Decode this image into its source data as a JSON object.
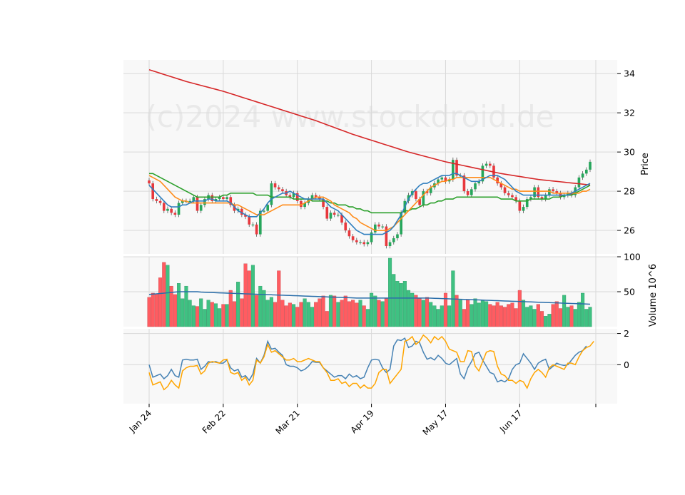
{
  "watermark": "(c)2024 www.stockdroid.de",
  "colors": {
    "up": "#26a65b",
    "down": "#e8383d",
    "up_vol": "#3fc182",
    "down_vol": "#ff5c61",
    "ma_blue": "#2f7fbf",
    "ma_orange": "#ff8c1a",
    "ma_green": "#2ca02c",
    "ma_red": "#d62728",
    "vol_ma": "#2a6eaa",
    "osc_blue": "#4682b4",
    "osc_orange": "#ffa500",
    "panel_bg": "#f8f8f8",
    "grid": "#d9d9d9"
  },
  "chart_data": [
    {
      "type": "candlestick",
      "panel": "price",
      "ylabel": "Price",
      "ylim": [
        24.8,
        34.7
      ],
      "yticks": [
        26,
        28,
        30,
        32,
        34
      ],
      "x_tick_labels": [
        "Jan 24",
        "Feb 22",
        "Mar 21",
        "Apr 19",
        "May 17",
        "Jun 17"
      ],
      "x_tick_index": [
        0,
        20,
        40,
        60,
        80,
        100
      ],
      "close": [
        28.4,
        27.6,
        27.5,
        27.4,
        27.0,
        27.1,
        26.9,
        26.8,
        27.4,
        27.5,
        27.5,
        27.5,
        27.7,
        27.0,
        27.3,
        27.6,
        27.8,
        27.5,
        27.6,
        27.7,
        27.6,
        27.7,
        27.3,
        27.0,
        27.1,
        26.8,
        26.7,
        26.3,
        26.3,
        25.8,
        27.0,
        27.0,
        27.3,
        28.4,
        28.2,
        28.1,
        28.0,
        27.8,
        27.7,
        27.9,
        27.5,
        27.2,
        27.4,
        27.6,
        27.8,
        27.7,
        27.6,
        27.2,
        26.6,
        26.9,
        26.8,
        26.8,
        26.4,
        26.0,
        25.7,
        25.5,
        25.4,
        25.4,
        25.3,
        25.4,
        25.9,
        26.3,
        26.2,
        26.2,
        25.2,
        25.4,
        25.6,
        25.8,
        26.9,
        27.5,
        27.8,
        28.0,
        27.6,
        27.3,
        28.0,
        27.9,
        28.2,
        28.4,
        28.6,
        28.7,
        28.5,
        28.6,
        29.6,
        28.8,
        28.8,
        28.0,
        27.8,
        28.1,
        28.4,
        28.5,
        29.3,
        29.4,
        29.3,
        28.7,
        28.4,
        28.2,
        27.9,
        27.8,
        27.7,
        27.5,
        27.0,
        27.2,
        27.6,
        27.7,
        28.2,
        27.7,
        27.6,
        27.8,
        28.1,
        28.0,
        27.9,
        27.7,
        27.8,
        27.9,
        27.8,
        28.2,
        28.7,
        28.9,
        29.1,
        29.5
      ],
      "ma_blue": [
        28.3,
        28.1,
        27.9,
        27.7,
        27.5,
        27.3,
        27.2,
        27.2,
        27.2,
        27.3,
        27.3,
        27.4,
        27.5,
        27.5,
        27.5,
        27.5,
        27.6,
        27.6,
        27.5,
        27.5,
        27.5,
        27.5,
        27.4,
        27.2,
        27.0,
        26.9,
        26.8,
        26.7,
        26.7,
        26.7,
        26.9,
        27.1,
        27.4,
        27.6,
        27.7,
        27.8,
        27.9,
        27.9,
        28.0,
        27.9,
        27.8,
        27.7,
        27.6,
        27.6,
        27.6,
        27.6,
        27.6,
        27.6,
        27.4,
        27.2,
        27.1,
        27.0,
        26.8,
        26.6,
        26.4,
        26.2,
        26.0,
        25.9,
        25.8,
        25.8,
        25.8,
        25.8,
        25.8,
        25.8,
        25.9,
        26.0,
        26.2,
        26.5,
        26.8,
        27.2,
        27.6,
        27.9,
        28.1,
        28.3,
        28.4,
        28.4,
        28.5,
        28.6,
        28.7,
        28.8,
        28.8,
        28.8,
        28.9,
        28.9,
        28.8,
        28.7,
        28.6,
        28.5,
        28.5,
        28.5,
        28.6,
        28.7,
        28.8,
        28.8,
        28.8,
        28.7,
        28.6,
        28.4,
        28.2,
        28.0,
        27.9,
        27.8,
        27.8,
        27.8,
        27.8,
        27.8,
        27.8,
        27.8,
        27.8,
        27.8,
        27.8,
        27.8,
        27.8,
        27.8,
        27.9,
        28.0,
        28.1,
        28.2,
        28.3,
        28.4
      ],
      "ma_orange": [
        28.8,
        28.7,
        28.6,
        28.5,
        28.3,
        28.1,
        27.9,
        27.7,
        27.6,
        27.5,
        27.5,
        27.4,
        27.4,
        27.4,
        27.4,
        27.4,
        27.4,
        27.4,
        27.4,
        27.4,
        27.4,
        27.4,
        27.4,
        27.3,
        27.3,
        27.2,
        27.1,
        27.0,
        26.9,
        26.8,
        26.8,
        26.8,
        26.9,
        27.0,
        27.1,
        27.2,
        27.3,
        27.3,
        27.3,
        27.3,
        27.3,
        27.3,
        27.4,
        27.5,
        27.6,
        27.7,
        27.7,
        27.7,
        27.6,
        27.5,
        27.3,
        27.2,
        27.1,
        27.0,
        26.9,
        26.7,
        26.6,
        26.4,
        26.3,
        26.2,
        26.1,
        26.0,
        26.0,
        26.0,
        26.0,
        26.1,
        26.2,
        26.4,
        26.6,
        26.8,
        27.0,
        27.2,
        27.4,
        27.6,
        27.8,
        28.0,
        28.2,
        28.3,
        28.4,
        28.5,
        28.5,
        28.6,
        28.6,
        28.7,
        28.7,
        28.7,
        28.7,
        28.7,
        28.7,
        28.7,
        28.7,
        28.7,
        28.7,
        28.6,
        28.5,
        28.4,
        28.3,
        28.2,
        28.1,
        28.1,
        28.0,
        28.0,
        28.0,
        28.0,
        28.0,
        28.0,
        28.0,
        28.0,
        28.0,
        27.9,
        27.9,
        27.9,
        27.9,
        27.9,
        27.9,
        27.9,
        27.9,
        28.0,
        28.0,
        28.1
      ],
      "ma_green": [
        28.9,
        28.9,
        28.8,
        28.7,
        28.6,
        28.5,
        28.4,
        28.3,
        28.2,
        28.1,
        28.0,
        27.9,
        27.8,
        27.7,
        27.7,
        27.7,
        27.7,
        27.7,
        27.7,
        27.7,
        27.8,
        27.8,
        27.9,
        27.9,
        27.9,
        27.9,
        27.9,
        27.9,
        27.9,
        27.8,
        27.8,
        27.8,
        27.8,
        27.7,
        27.7,
        27.7,
        27.7,
        27.7,
        27.7,
        27.6,
        27.6,
        27.6,
        27.6,
        27.6,
        27.5,
        27.5,
        27.5,
        27.5,
        27.5,
        27.4,
        27.4,
        27.3,
        27.3,
        27.3,
        27.2,
        27.2,
        27.1,
        27.1,
        27.0,
        27.0,
        26.9,
        26.9,
        26.9,
        26.9,
        26.9,
        26.9,
        26.9,
        26.9,
        26.9,
        27.0,
        27.0,
        27.1,
        27.1,
        27.2,
        27.3,
        27.3,
        27.4,
        27.4,
        27.5,
        27.5,
        27.6,
        27.6,
        27.6,
        27.7,
        27.7,
        27.7,
        27.7,
        27.7,
        27.7,
        27.7,
        27.7,
        27.7,
        27.7,
        27.7,
        27.7,
        27.6,
        27.6,
        27.6,
        27.6,
        27.5,
        27.5,
        27.5,
        27.5,
        27.6,
        27.6,
        27.6,
        27.6,
        27.6,
        27.6,
        27.7,
        27.7,
        27.7,
        27.8,
        27.8,
        27.8,
        27.9,
        28.0,
        28.1,
        28.2,
        28.3
      ],
      "ma_red": [
        34.2,
        34.14,
        34.08,
        34.02,
        33.96,
        33.9,
        33.84,
        33.78,
        33.72,
        33.66,
        33.6,
        33.55,
        33.5,
        33.45,
        33.4,
        33.35,
        33.3,
        33.25,
        33.2,
        33.15,
        33.1,
        33.04,
        32.98,
        32.92,
        32.86,
        32.8,
        32.74,
        32.68,
        32.62,
        32.56,
        32.5,
        32.44,
        32.38,
        32.32,
        32.26,
        32.2,
        32.14,
        32.08,
        32.02,
        31.96,
        31.9,
        31.84,
        31.78,
        31.72,
        31.66,
        31.6,
        31.53,
        31.46,
        31.39,
        31.32,
        31.25,
        31.18,
        31.11,
        31.04,
        30.97,
        30.9,
        30.84,
        30.78,
        30.72,
        30.66,
        30.6,
        30.54,
        30.48,
        30.42,
        30.36,
        30.3,
        30.24,
        30.18,
        30.12,
        30.06,
        30.0,
        29.95,
        29.9,
        29.85,
        29.8,
        29.75,
        29.7,
        29.65,
        29.6,
        29.55,
        29.5,
        29.46,
        29.42,
        29.38,
        29.34,
        29.3,
        29.26,
        29.22,
        29.18,
        29.14,
        29.1,
        29.06,
        29.02,
        28.98,
        28.94,
        28.9,
        28.87,
        28.84,
        28.81,
        28.78,
        28.75,
        28.72,
        28.69,
        28.66,
        28.63,
        28.6,
        28.58,
        28.56,
        28.54,
        28.52,
        28.5,
        28.48,
        28.46,
        28.44,
        28.42,
        28.4,
        28.38,
        28.36,
        28.34,
        28.32
      ]
    },
    {
      "type": "bar",
      "panel": "volume",
      "ylabel": "Volume  10^6",
      "ylim": [
        0,
        100
      ],
      "yticks": [
        50,
        100
      ],
      "values": [
        42,
        48,
        47,
        70,
        92,
        88,
        58,
        46,
        62,
        40,
        58,
        38,
        30,
        29,
        40,
        25,
        38,
        35,
        33,
        26,
        32,
        32,
        52,
        36,
        64,
        40,
        90,
        80,
        88,
        45,
        58,
        52,
        38,
        42,
        35,
        80,
        38,
        30,
        34,
        32,
        28,
        35,
        40,
        35,
        28,
        35,
        40,
        44,
        22,
        45,
        44,
        35,
        38,
        44,
        36,
        38,
        34,
        38,
        30,
        25,
        48,
        44,
        38,
        36,
        40,
        98,
        75,
        65,
        62,
        65,
        52,
        48,
        45,
        40,
        38,
        42,
        35,
        30,
        25,
        30,
        48,
        30,
        80,
        45,
        38,
        25,
        38,
        32,
        40,
        34,
        38,
        36,
        32,
        30,
        35,
        30,
        28,
        32,
        34,
        26,
        52,
        38,
        28,
        30,
        25,
        32,
        22,
        15,
        18,
        32,
        36,
        26,
        45,
        28,
        30,
        25,
        35,
        48,
        25,
        28
      ],
      "volume_ma": [
        46,
        46.5,
        47,
        47.5,
        48,
        48.5,
        49,
        49.5,
        50,
        50,
        50,
        50,
        50,
        50,
        49.5,
        49.2,
        49,
        48.8,
        48.6,
        48.4,
        48.2,
        48,
        47.8,
        47.6,
        47.4,
        47.2,
        47,
        46.8,
        46.6,
        46.4,
        46.2,
        46,
        45.8,
        45.6,
        45.4,
        45.2,
        45,
        44.8,
        44.6,
        44.4,
        44.2,
        44,
        43.8,
        43.6,
        43.4,
        43.2,
        43,
        42.8,
        42.6,
        42.4,
        42.2,
        42,
        41.8,
        41.6,
        41.4,
        41.2,
        41,
        41,
        41,
        41,
        41,
        41,
        41,
        41,
        41,
        41,
        41,
        41,
        41,
        41,
        41,
        41,
        41,
        41,
        41,
        41,
        40.8,
        40.6,
        40.4,
        40.2,
        40,
        39.8,
        39.6,
        39.4,
        39.2,
        39,
        38.8,
        38.6,
        38.4,
        38.2,
        38,
        37.8,
        37.6,
        37.4,
        37.2,
        37,
        36.8,
        36.6,
        36.4,
        36.2,
        36,
        35.8,
        35.6,
        35.4,
        35.2,
        35,
        34.8,
        34.6,
        34.4,
        34.2,
        34,
        33.8,
        33.6,
        33.4,
        33.2,
        33,
        32.8,
        32.6,
        32.4,
        32.2
      ]
    },
    {
      "type": "line",
      "panel": "oscillator",
      "ylim": [
        -2.5,
        2.3
      ],
      "yticks": [
        0,
        2
      ],
      "series": [
        {
          "values": [
            0.0,
            -0.8,
            -0.7,
            -0.6,
            -0.9,
            -0.7,
            -0.3,
            -0.7,
            -0.8,
            0.3,
            0.35,
            0.3,
            0.3,
            0.35,
            -0.3,
            -0.1,
            0.2,
            0.15,
            0.2,
            0.1,
            0.1,
            0.3,
            -0.2,
            -0.4,
            -0.3,
            -0.8,
            -0.7,
            -1.0,
            -0.6,
            0.4,
            0.1,
            0.6,
            1.5,
            1.0,
            1.05,
            0.8,
            0.6,
            0.0,
            -0.1,
            -0.1,
            -0.2,
            -0.4,
            -0.3,
            -0.1,
            0.2,
            0.15,
            0.15,
            -0.2,
            -0.4,
            -0.6,
            -0.8,
            -0.7,
            -0.7,
            -0.9,
            -0.6,
            -0.8,
            -0.7,
            -0.9,
            -0.8,
            -0.2,
            0.3,
            0.35,
            0.3,
            -0.2,
            -0.5,
            -0.3,
            1.2,
            1.6,
            1.55,
            1.7,
            1.1,
            1.2,
            1.5,
            1.4,
            0.8,
            0.35,
            0.45,
            0.3,
            0.6,
            0.4,
            0.1,
            0.0,
            0.2,
            0.4,
            -0.6,
            -0.9,
            -0.2,
            0.2,
            0.7,
            0.8,
            0.3,
            -0.1,
            -0.5,
            -0.6,
            -1.1,
            -1.0,
            -1.1,
            -0.9,
            -0.3,
            0.0,
            0.1,
            0.7,
            0.4,
            0.1,
            -0.3,
            0.1,
            0.25,
            0.35,
            -0.3,
            -0.1,
            0.1,
            0.0,
            -0.05,
            0.0,
            0.3,
            0.6,
            0.8,
            0.9,
            1.2
          ]
        },
        {
          "values": [
            -0.5,
            -1.3,
            -1.2,
            -1.1,
            -1.6,
            -1.4,
            -1.0,
            -1.3,
            -1.5,
            -0.4,
            -0.2,
            -0.1,
            -0.1,
            -0.05,
            -0.6,
            -0.4,
            0.1,
            0.2,
            0.15,
            0.1,
            0.3,
            0.35,
            -0.5,
            -0.6,
            -0.5,
            -1.0,
            -0.8,
            -1.3,
            -1.0,
            0.3,
            0.1,
            0.5,
            1.3,
            0.8,
            0.9,
            0.7,
            0.5,
            0.3,
            0.3,
            0.4,
            0.2,
            0.2,
            0.3,
            0.4,
            0.3,
            0.2,
            0.2,
            -0.2,
            -0.5,
            -1.0,
            -1.0,
            -0.9,
            -1.2,
            -1.1,
            -1.4,
            -1.2,
            -1.2,
            -1.5,
            -1.3,
            -1.5,
            -1.5,
            -1.2,
            -0.5,
            -0.3,
            -0.3,
            -1.2,
            -0.9,
            -0.6,
            -0.3,
            1.5,
            1.6,
            1.8,
            1.3,
            1.5,
            1.9,
            1.7,
            1.4,
            1.8,
            1.6,
            1.8,
            1.5,
            1.0,
            0.9,
            0.8,
            0.2,
            0.2,
            0.9,
            0.85,
            -0.1,
            -0.4,
            0.2,
            0.8,
            0.9,
            0.85,
            -0.1,
            -0.6,
            -0.7,
            -1.0,
            -1.0,
            -1.2,
            -1.0,
            -1.1,
            -1.5,
            -0.9,
            -0.5,
            -0.3,
            -0.5,
            -0.8,
            -0.2,
            0.0,
            -0.1,
            -0.2,
            -0.3,
            0.1,
            0.1,
            0.0,
            0.5,
            0.9,
            1.1,
            1.2,
            1.5
          ]
        }
      ]
    }
  ]
}
